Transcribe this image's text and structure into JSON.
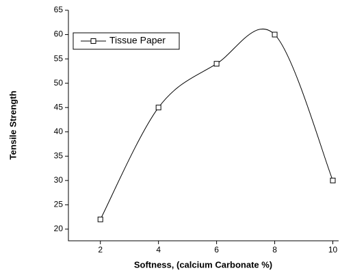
{
  "chart_data": {
    "type": "line",
    "x_label": "Softness, (calcium Carbonate %)",
    "y_label": "Tensile Strength",
    "x": [
      2,
      4,
      6,
      8,
      10
    ],
    "series": [
      {
        "name": "Tissue Paper",
        "color": "#000000",
        "values": [
          22,
          45,
          54,
          60,
          30
        ]
      }
    ],
    "xlim": [
      0.9,
      10.2
    ],
    "xticks": [
      2,
      4,
      6,
      8,
      10
    ],
    "ylim": [
      17.6,
      65
    ],
    "yticks": [
      20,
      25,
      30,
      35,
      40,
      45,
      50,
      55,
      60,
      65
    ],
    "legend": "upper left",
    "grid": false
  }
}
